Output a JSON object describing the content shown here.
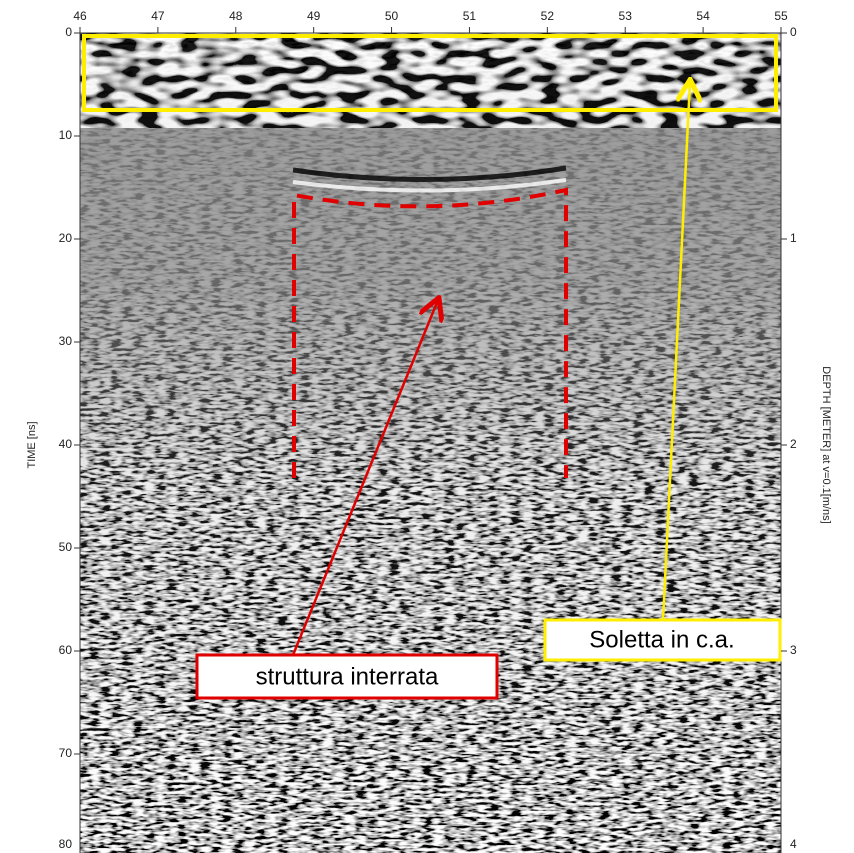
{
  "chart_data": {
    "type": "radargram",
    "xlim": [
      46,
      55
    ],
    "xticks": [
      46,
      47,
      48,
      49,
      50,
      51,
      52,
      53,
      54,
      55
    ],
    "ylabel": "TIME [ns]",
    "ylim": [
      0,
      80
    ],
    "yticks": [
      0,
      10,
      20,
      30,
      40,
      50,
      60,
      70,
      80
    ],
    "y2label": "DEPTH [METER] at v=0.1[m/ns]",
    "y2lim": [
      0,
      4
    ],
    "y2ticks": [
      0,
      1,
      2,
      3,
      4
    ],
    "annotations": [
      "struttura interrata",
      "Soletta in c.a."
    ]
  }
}
